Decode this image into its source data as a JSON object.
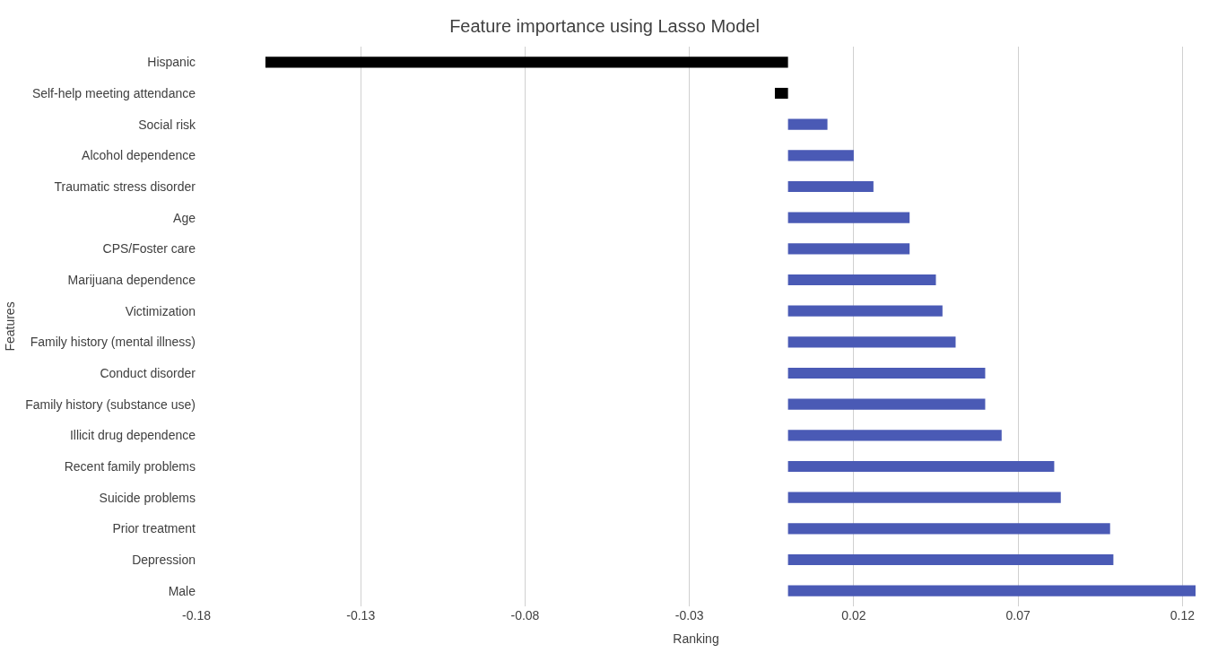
{
  "chart_data": {
    "type": "bar",
    "orientation": "horizontal",
    "title": "Feature importance using Lasso Model",
    "xlabel": "Ranking",
    "ylabel": "Features",
    "categories": [
      "Hispanic",
      "Self-help meeting attendance",
      "Social risk",
      "Alcohol dependence",
      "Traumatic stress disorder",
      "Age",
      "CPS/Foster care",
      "Marijuana dependence",
      "Victimization",
      "Family history (mental illness)",
      "Conduct disorder",
      "Family history (substance use)",
      "Illicit drug dependence",
      "Recent family problems",
      "Suicide problems",
      "Prior treatment",
      "Depression",
      "Male"
    ],
    "values": [
      -0.159,
      -0.004,
      0.012,
      0.02,
      0.026,
      0.037,
      0.037,
      0.045,
      0.047,
      0.051,
      0.06,
      0.06,
      0.065,
      0.081,
      0.083,
      0.098,
      0.099,
      0.124
    ],
    "colors": [
      "#000000",
      "#000000",
      "#4a5ab5",
      "#4a5ab5",
      "#4a5ab5",
      "#4a5ab5",
      "#4a5ab5",
      "#4a5ab5",
      "#4a5ab5",
      "#4a5ab5",
      "#4a5ab5",
      "#4a5ab5",
      "#4a5ab5",
      "#4a5ab5",
      "#4a5ab5",
      "#4a5ab5",
      "#4a5ab5",
      "#4a5ab5"
    ],
    "xlim": [
      -0.18,
      0.124
    ],
    "xticks": [
      -0.18,
      -0.13,
      -0.08,
      -0.03,
      0.02,
      0.07,
      0.12
    ],
    "grid": "x",
    "legend": false
  }
}
